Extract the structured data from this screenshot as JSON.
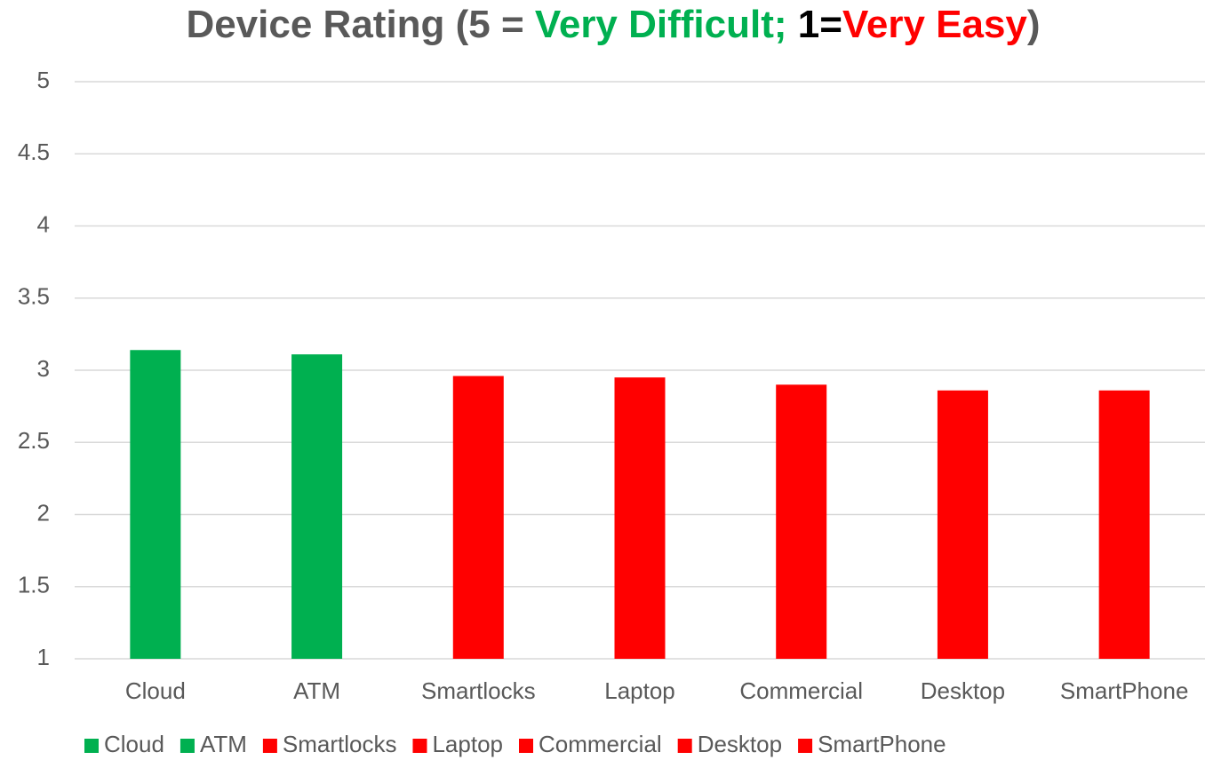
{
  "chart_data": {
    "type": "bar",
    "title_parts": [
      {
        "text": "Device Rating (5 = ",
        "color": "#595959"
      },
      {
        "text": "Very Difficult;",
        "color": "#00b050"
      },
      {
        "text": " 1=",
        "color": "#000000"
      },
      {
        "text": "Very Easy",
        "color": "#ff0000"
      },
      {
        "text": ")",
        "color": "#595959"
      }
    ],
    "categories": [
      "Cloud",
      "ATM",
      "Smartlocks",
      "Laptop",
      "Commercial",
      "Desktop",
      "SmartPhone"
    ],
    "values": [
      3.14,
      3.11,
      2.96,
      2.95,
      2.9,
      2.86,
      2.86
    ],
    "colors": [
      "#00b050",
      "#00b050",
      "#ff0000",
      "#ff0000",
      "#ff0000",
      "#ff0000",
      "#ff0000"
    ],
    "ylim": [
      1,
      5
    ],
    "yticks": [
      1,
      1.5,
      2,
      2.5,
      3,
      3.5,
      4,
      4.5,
      5
    ],
    "grid": true,
    "legend": "bottom"
  }
}
